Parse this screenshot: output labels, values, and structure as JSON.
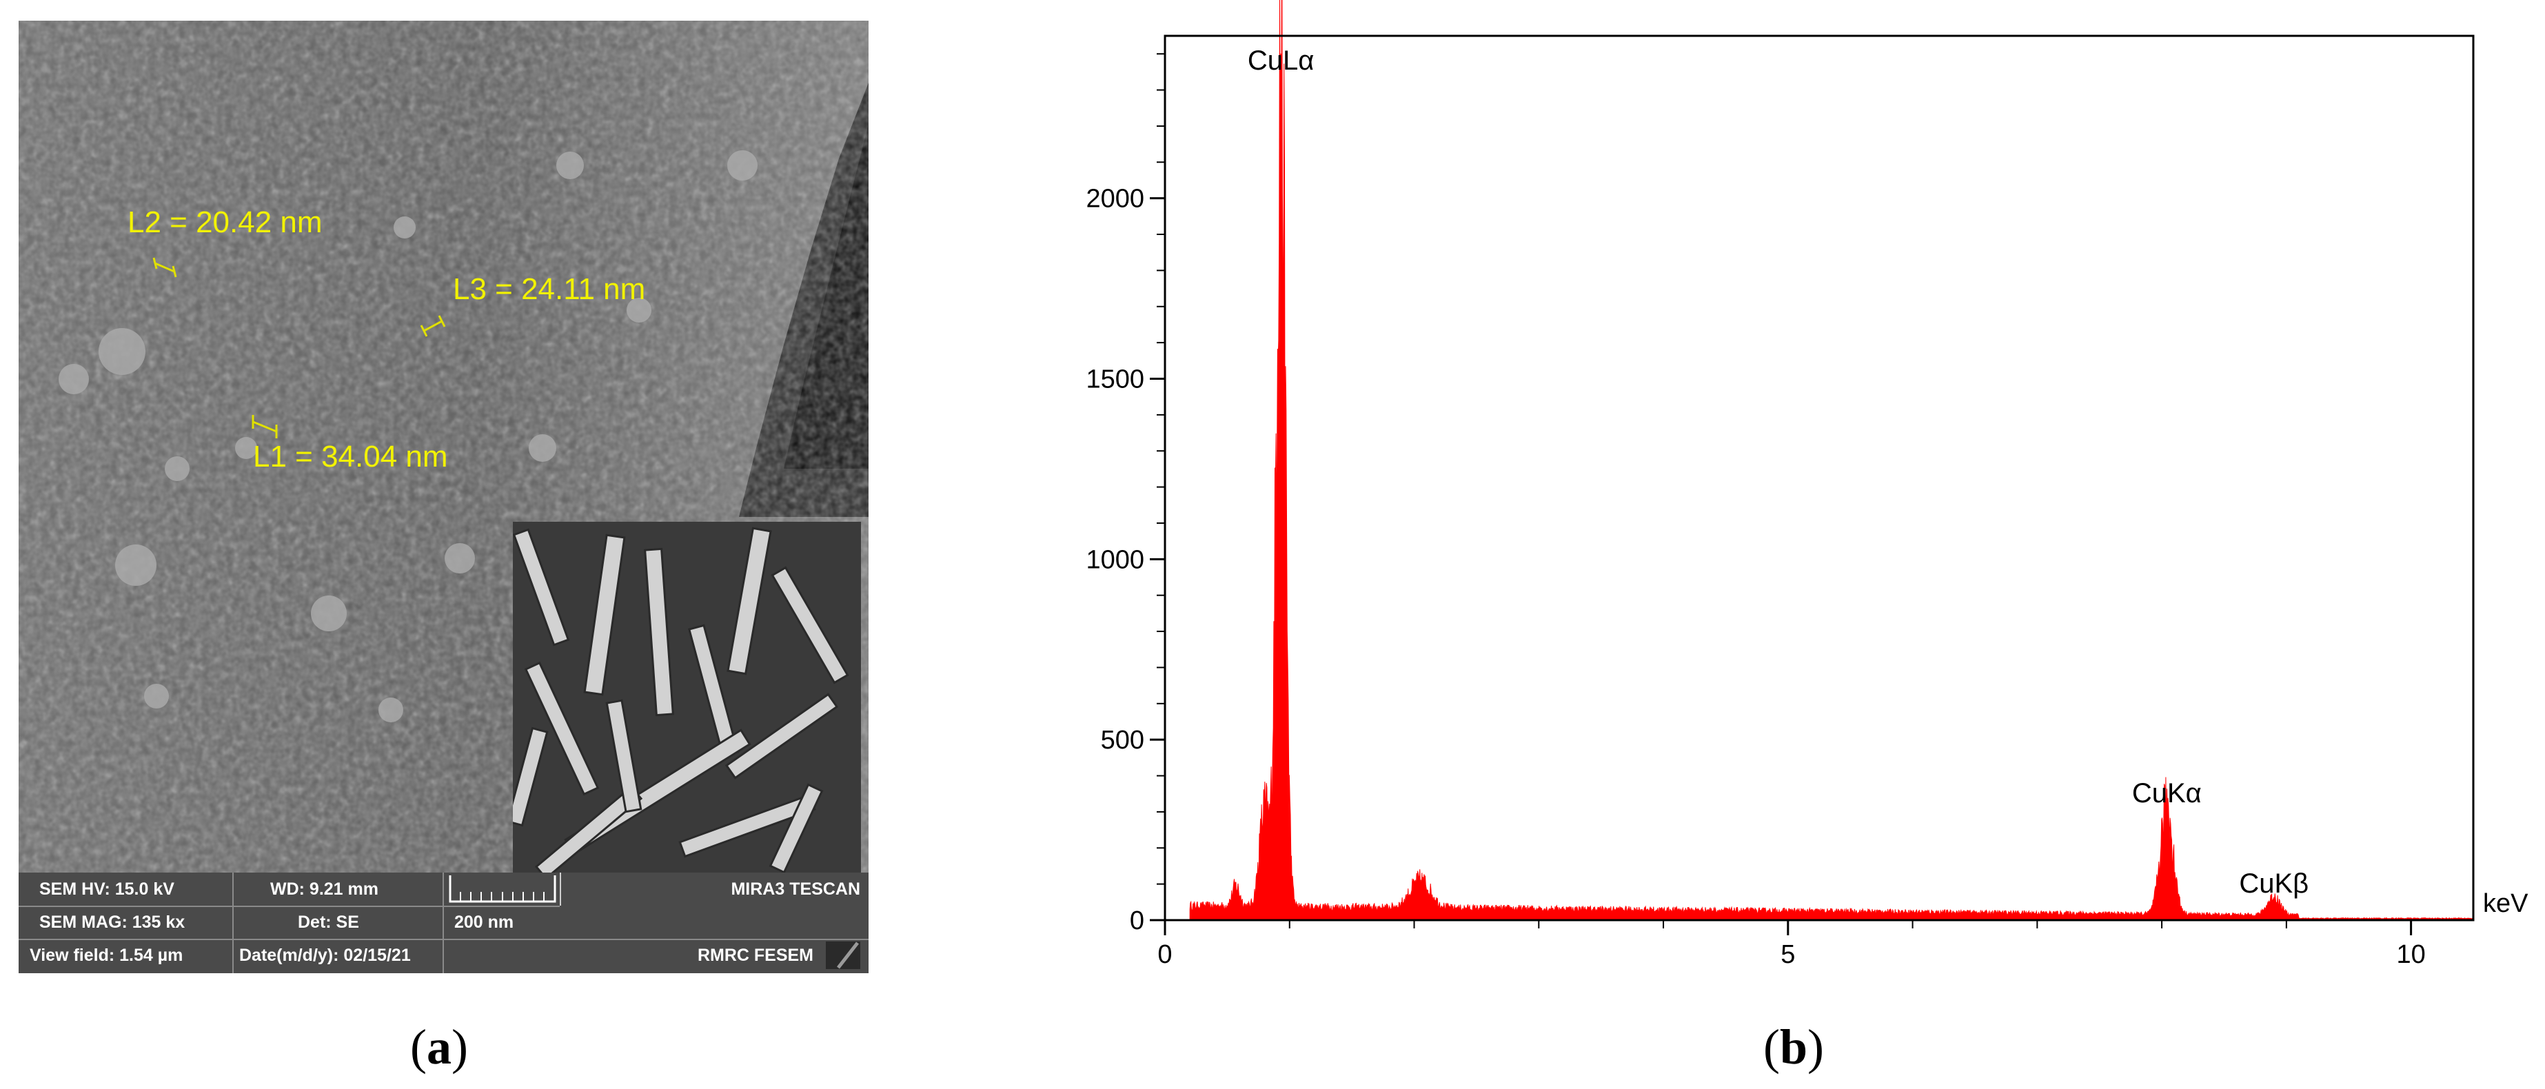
{
  "panel_a": {
    "label": "a",
    "measurements": [
      {
        "id": "L2",
        "text": "L2 = 20.42 nm"
      },
      {
        "id": "L3",
        "text": "L3 = 24.11 nm"
      },
      {
        "id": "L1",
        "text": "L1 = 34.04 nm"
      }
    ],
    "info_bar": {
      "sem_hv": "SEM HV: 15.0 kV",
      "wd": "WD: 9.21 mm",
      "brand": "MIRA3 TESCAN",
      "sem_mag": "SEM MAG: 135 kx",
      "det": "Det: SE",
      "scale": "200 nm",
      "view_field": "View field: 1.54 µm",
      "date": "Date(m/d/y): 02/15/21",
      "lab": "RMRC  FESEM"
    }
  },
  "panel_b": {
    "label": "b"
  },
  "chart_data": {
    "type": "area",
    "title": "",
    "xlabel": "keV",
    "ylabel": "",
    "xlim": [
      0,
      10.5
    ],
    "ylim": [
      0,
      2450
    ],
    "x_ticks": [
      0,
      5,
      10
    ],
    "y_ticks": [
      0,
      500,
      1000,
      1500,
      2000
    ],
    "x_tick_labels": [
      "0",
      "5",
      "10"
    ],
    "y_tick_labels": [
      "0",
      "500",
      "1000",
      "1500",
      "2000"
    ],
    "series": [
      {
        "color": "#ff0000",
        "peaks": [
          {
            "x": 0.93,
            "y": 2330,
            "width": 0.035
          },
          {
            "x": 0.8,
            "y": 270,
            "width": 0.04
          },
          {
            "x": 0.57,
            "y": 55,
            "width": 0.03
          },
          {
            "x": 2.05,
            "y": 75,
            "width": 0.08
          },
          {
            "x": 8.04,
            "y": 300,
            "width": 0.05
          },
          {
            "x": 8.9,
            "y": 50,
            "width": 0.05
          }
        ],
        "background": {
          "start": 40,
          "end": 10
        }
      }
    ],
    "annotations": [
      {
        "text": "CuLα",
        "x": 0.93,
        "y": 2330
      },
      {
        "text": "CuKα",
        "x": 8.04,
        "y": 300
      },
      {
        "text": "CuKβ",
        "x": 8.9,
        "y": 50
      }
    ],
    "grid": false,
    "legend": "none"
  }
}
